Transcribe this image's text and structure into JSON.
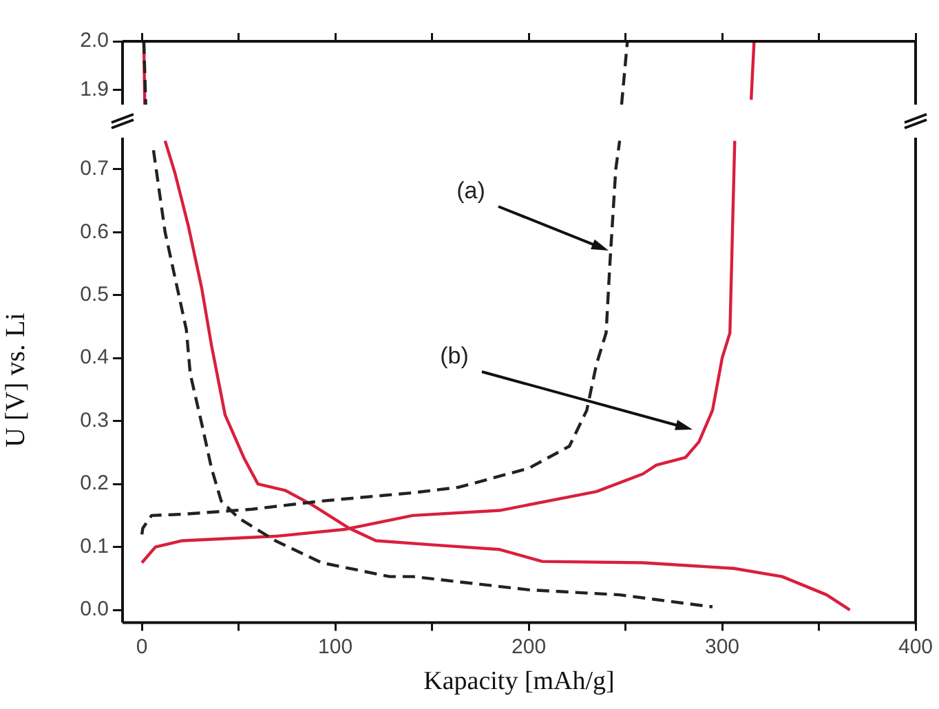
{
  "chart_data": [
    {
      "type": "line",
      "xlim": [
        -10,
        400
      ],
      "xticks": [
        0,
        {
          "value": 50,
          "label": null
        },
        100,
        {
          "value": 150,
          "label": null
        },
        200,
        {
          "value": 250,
          "label": null
        },
        300,
        {
          "value": 350,
          "label": null
        },
        400
      ],
      "ylim": [
        1.87,
        2.0
      ],
      "yticks": [
        {
          "value": 1.9,
          "label": "1.9"
        },
        {
          "value": 2.0,
          "label": "2.0"
        }
      ],
      "tick_labels": "y",
      "grid": false,
      "legend": false,
      "marker": "none",
      "series": [
        {
          "color": "#222222",
          "line_style": "dashed",
          "x": [
            1,
            2
          ],
          "values": [
            2.0,
            1.87
          ]
        },
        {
          "color": "#d8203c",
          "line_style": "solid",
          "x": [
            1,
            1.5
          ],
          "values": [
            2.0,
            1.87
          ]
        },
        {
          "color": "#222222",
          "line_style": "dashed",
          "x": [
            248,
            251
          ],
          "values": [
            1.87,
            2.0
          ]
        },
        {
          "color": "#d8203c",
          "line_style": "solid",
          "x": [
            315,
            316.5
          ],
          "values": [
            1.88,
            2.0
          ]
        }
      ]
    },
    {
      "type": "line",
      "xlabel": "Kapacity [mAh/g]",
      "ylabel": "U [V] vs. Li",
      "xlim": [
        -10,
        400
      ],
      "xticks": [
        0,
        {
          "value": 50,
          "label": null
        },
        100,
        {
          "value": 150,
          "label": null
        },
        200,
        {
          "value": 250,
          "label": null
        },
        300,
        {
          "value": 350,
          "label": null
        },
        400
      ],
      "ylim": [
        -0.02,
        0.75
      ],
      "yticks": [
        {
          "value": 0,
          "label": "0.0"
        },
        0.1,
        0.2,
        0.3,
        0.4,
        0.5,
        0.6,
        0.7
      ],
      "grid": false,
      "legend": false,
      "marker": "none",
      "annotations": [
        "(a)",
        "(b)"
      ],
      "series": [
        {
          "color": "#222222",
          "line_style": "dashed",
          "x": [
            6,
            12,
            23,
            25,
            31,
            36,
            41,
            50,
            69,
            93,
            128,
            140,
            200,
            247,
            292,
            295
          ],
          "values": [
            0.73,
            0.6,
            0.445,
            0.375,
            0.295,
            0.225,
            0.173,
            0.146,
            0.11,
            0.075,
            0.053,
            0.053,
            0.032,
            0.024,
            0.006,
            0.005
          ]
        },
        {
          "color": "#222222",
          "line_style": "dashed",
          "x": [
            0,
            0.5,
            5,
            21,
            57,
            93,
            140,
            164,
            200,
            221,
            230,
            235,
            240,
            242,
            245,
            247
          ],
          "values": [
            0.12,
            0.13,
            0.15,
            0.152,
            0.16,
            0.173,
            0.186,
            0.195,
            0.225,
            0.26,
            0.317,
            0.39,
            0.44,
            0.552,
            0.7,
            0.745
          ]
        },
        {
          "color": "#d8203c",
          "line_style": "solid",
          "x": [
            12,
            17,
            24,
            31,
            36,
            43,
            53,
            60,
            74,
            88,
            107,
            121,
            152,
            185,
            207,
            259,
            306,
            331,
            354,
            366
          ],
          "values": [
            0.745,
            0.695,
            0.61,
            0.51,
            0.42,
            0.31,
            0.24,
            0.2,
            0.19,
            0.167,
            0.13,
            0.11,
            0.103,
            0.096,
            0.077,
            0.075,
            0.066,
            0.053,
            0.024,
            0.0
          ]
        },
        {
          "color": "#d8203c",
          "line_style": "solid",
          "x": [
            0,
            7,
            21,
            69,
            105,
            140,
            185,
            235,
            259,
            266,
            281,
            288,
            295,
            300,
            304,
            306.5
          ],
          "values": [
            0.075,
            0.1,
            0.11,
            0.117,
            0.128,
            0.15,
            0.158,
            0.188,
            0.216,
            0.23,
            0.242,
            0.267,
            0.317,
            0.4,
            0.44,
            0.745
          ]
        }
      ]
    }
  ]
}
